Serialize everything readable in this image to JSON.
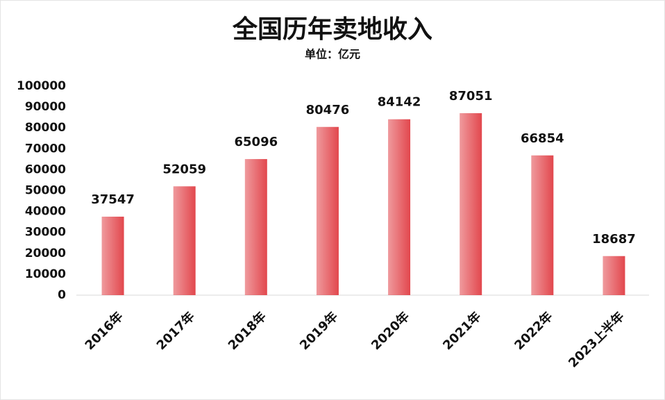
{
  "chart_data": {
    "type": "bar",
    "title": "全国历年卖地收入",
    "subtitle": "单位：亿元",
    "categories": [
      "2016年",
      "2017年",
      "2018年",
      "2019年",
      "2020年",
      "2021年",
      "2022年",
      "2023上半年"
    ],
    "values": [
      37547,
      52059,
      65096,
      80476,
      84142,
      87051,
      66854,
      18687
    ],
    "color": "#e2474d",
    "ylim": [
      0,
      100000
    ],
    "yticks": [
      0,
      10000,
      20000,
      30000,
      40000,
      50000,
      60000,
      70000,
      80000,
      90000,
      100000
    ],
    "grid": false
  }
}
